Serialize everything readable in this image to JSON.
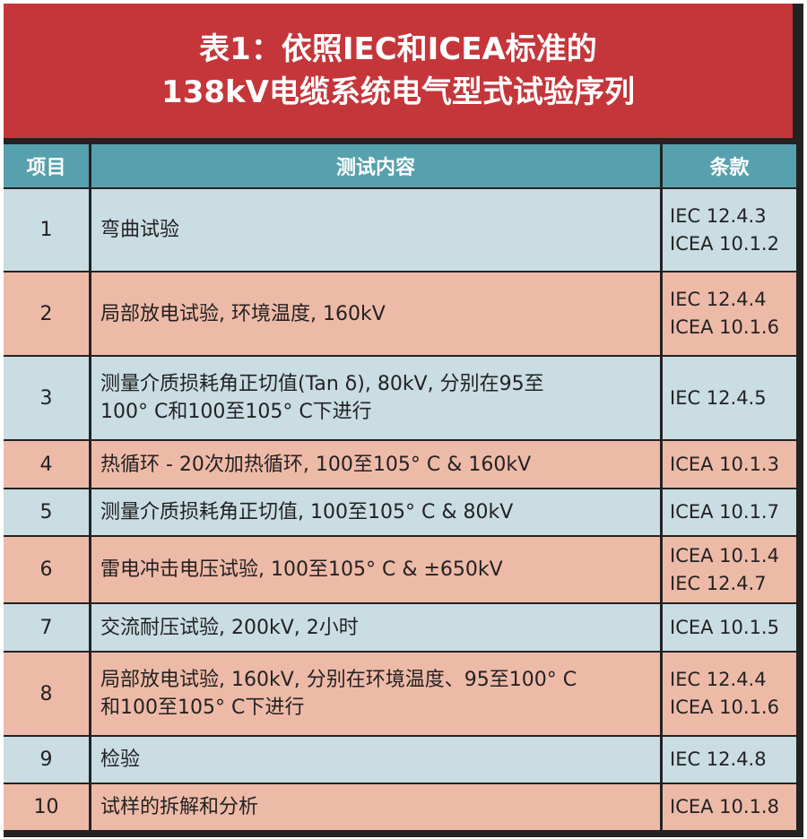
{
  "title": {
    "line1": "表1：依照IEC和ICEA标准的",
    "line2": "138kV电缆系统电气型式试验序列"
  },
  "headers": [
    "项目",
    "测试内容",
    "条款"
  ],
  "colors": {
    "title_bg": "#c4363a",
    "header_bg": "#57a0ad",
    "row_blue": "#c9dde3",
    "row_salmon": "#eebaa8"
  },
  "rows": [
    {
      "no": "1",
      "content": [
        "弯曲试验"
      ],
      "clauses": [
        "IEC 12.4.3",
        "ICEA 10.1.2"
      ]
    },
    {
      "no": "2",
      "content": [
        "局部放电试验, 环境温度, 160kV"
      ],
      "clauses": [
        "IEC 12.4.4",
        "ICEA 10.1.6"
      ]
    },
    {
      "no": "3",
      "content": [
        "测量介质损耗角正切值(Tan δ), 80kV, 分别在95至",
        "100° C和100至105° C下进行"
      ],
      "clauses": [
        "IEC 12.4.5"
      ]
    },
    {
      "no": "4",
      "content": [
        "热循环 - 20次加热循环, 100至105° C & 160kV"
      ],
      "clauses": [
        "ICEA 10.1.3"
      ]
    },
    {
      "no": "5",
      "content": [
        "测量介质损耗角正切值, 100至105° C & 80kV"
      ],
      "clauses": [
        "ICEA 10.1.7"
      ]
    },
    {
      "no": "6",
      "content": [
        "雷电冲击电压试验, 100至105° C & ±650kV"
      ],
      "clauses": [
        "ICEA 10.1.4",
        "IEC 12.4.7"
      ]
    },
    {
      "no": "7",
      "content": [
        "交流耐压试验, 200kV, 2小时"
      ],
      "clauses": [
        "ICEA 10.1.5"
      ]
    },
    {
      "no": "8",
      "content": [
        "局部放电试验, 160kV, 分别在环境温度、95至100° C",
        "和100至105° C下进行"
      ],
      "clauses": [
        "IEC 12.4.4",
        "ICEA 10.1.6"
      ]
    },
    {
      "no": "9",
      "content": [
        "检验"
      ],
      "clauses": [
        "IEC 12.4.8"
      ]
    },
    {
      "no": "10",
      "content": [
        "试样的拆解和分析"
      ],
      "clauses": [
        "ICEA 10.1.8"
      ]
    }
  ]
}
